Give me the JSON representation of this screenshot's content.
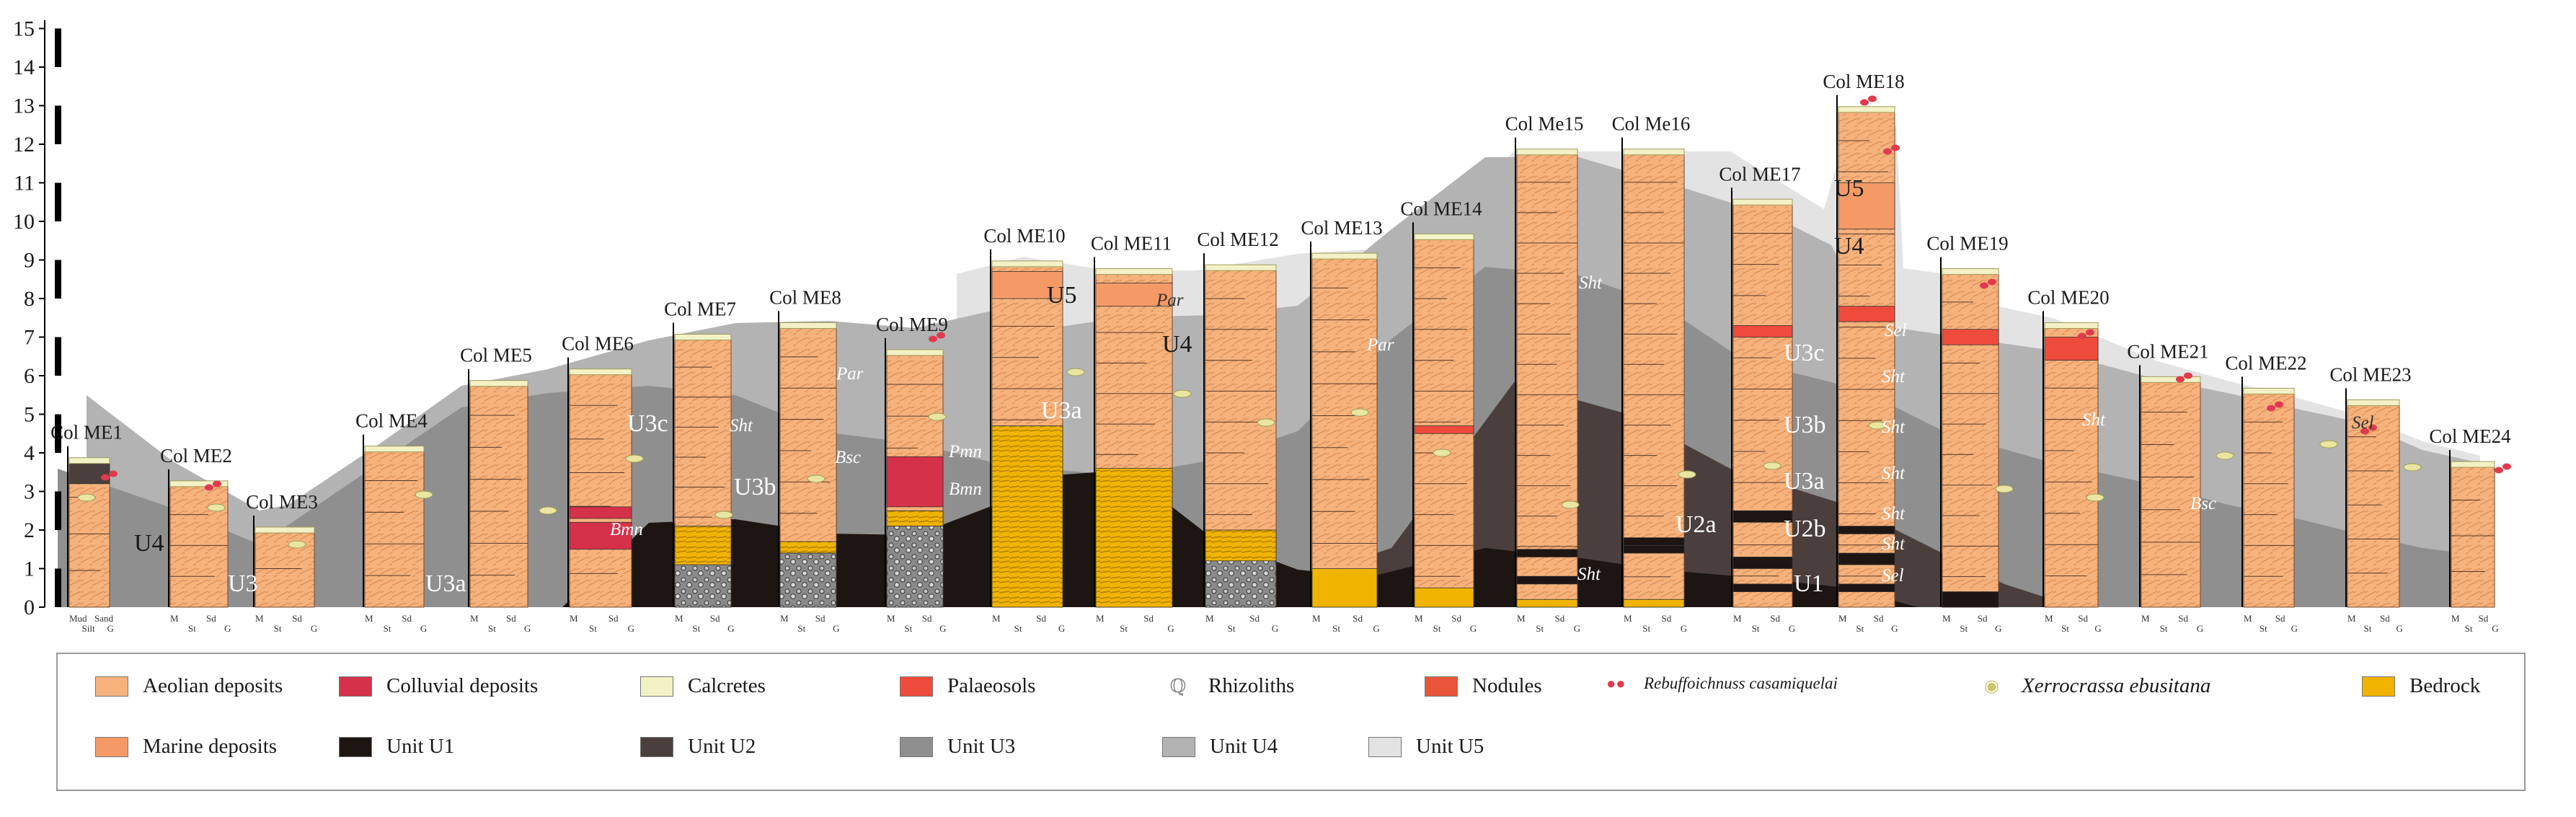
{
  "y_axis": {
    "ticks": [
      "0",
      "1",
      "2",
      "3",
      "4",
      "5",
      "6",
      "7",
      "8",
      "9",
      "10",
      "11",
      "12",
      "13",
      "14",
      "15"
    ]
  },
  "columns": [
    {
      "name": "Col ME1",
      "height": 3.8
    },
    {
      "name": "Col ME2",
      "height": 3.2
    },
    {
      "name": "Col ME3",
      "height": 2.0
    },
    {
      "name": "Col ME4",
      "height": 4.1
    },
    {
      "name": "Col ME5",
      "height": 5.8
    },
    {
      "name": "Col ME6",
      "height": 6.1
    },
    {
      "name": "Col ME7",
      "height": 7.0
    },
    {
      "name": "Col ME8",
      "height": 7.3
    },
    {
      "name": "Col ME9",
      "height": 6.6
    },
    {
      "name": "Col ME10",
      "height": 8.9
    },
    {
      "name": "Col ME11",
      "height": 8.7
    },
    {
      "name": "Col ME12",
      "height": 8.8
    },
    {
      "name": "Col ME13",
      "height": 9.1
    },
    {
      "name": "Col ME14",
      "height": 9.6
    },
    {
      "name": "Col Me15",
      "height": 11.8
    },
    {
      "name": "Col Me16",
      "height": 11.8
    },
    {
      "name": "Col ME17",
      "height": 10.5
    },
    {
      "name": "Col ME18",
      "height": 12.9
    },
    {
      "name": "Col ME19",
      "height": 8.7
    },
    {
      "name": "Col ME20",
      "height": 7.3
    },
    {
      "name": "Col ME21",
      "height": 5.9
    },
    {
      "name": "Col ME22",
      "height": 5.6
    },
    {
      "name": "Col ME23",
      "height": 5.3
    },
    {
      "name": "Col ME24",
      "height": 3.7
    }
  ],
  "grain_size_labels": {
    "me1": [
      "Mud",
      "Silt",
      "Sand",
      "G"
    ],
    "standard": [
      "M",
      "St",
      "Sd",
      "G"
    ]
  },
  "unit_labels": {
    "u4_me1": "U4",
    "u3_me2": "U3",
    "u3a_me4": "U3a",
    "u3c_me6": "U3c",
    "u3b_me7": "U3b",
    "u5_me10": "U5",
    "u3a_me10": "U3a",
    "u4_me11": "U4",
    "u2a": "U2a",
    "u3c_me18": "U3c",
    "u3b_me18": "U3b",
    "u3a_me18": "U3a",
    "u2b": "U2b",
    "u1": "U1",
    "u5_me18": "U5",
    "u4_me18": "U4"
  },
  "facies_labels": {
    "bmn_me6": "Bmn",
    "sht_me7": "Sht",
    "par_me8": "Par",
    "bsc_me8": "Bsc",
    "pmn_me9": "Pmn",
    "bmn_me9": "Bmn",
    "par_me11": "Par",
    "par_me13": "Par",
    "sht_me15": "Sht",
    "sht_me15b": "Sht",
    "sel_me18": "Sel",
    "sht_me18a": "Sht",
    "sht_me18b": "Sht",
    "sht_me18c": "Sht",
    "sht_me18d": "Sht",
    "sht_me18e": "Sht",
    "sel_me18b": "Sel",
    "sht_me20": "Sht",
    "bsc_me21": "Bsc",
    "sel_me23": "Sel"
  },
  "legend": {
    "row1": [
      {
        "label": "Aeolian deposits",
        "color": "#f6b27c"
      },
      {
        "label": "Colluvial deposits",
        "color": "#d6314a"
      },
      {
        "label": "Calcretes",
        "color": "#f3f2c6"
      },
      {
        "label": "Palaeosols",
        "color": "#ef4b3c"
      },
      {
        "label": "Rhizoliths",
        "color": "#ffffff"
      },
      {
        "label": "Nodules",
        "color": "#e9553a"
      },
      {
        "label": "Rebuffoichnuss casamiquelai",
        "color": "#e03a4e"
      },
      {
        "label": "Xerrocrassa ebusitana",
        "color": "#e8e6a0"
      },
      {
        "label": "Bedrock",
        "color": "#f0b400"
      }
    ],
    "row2": [
      {
        "label": "Marine deposits",
        "color": "#f59a66"
      },
      {
        "label": "Unit U1",
        "color": "#1c1512"
      },
      {
        "label": "Unit U2",
        "color": "#4a3f3c"
      },
      {
        "label": "Unit U3",
        "color": "#8f8f8f"
      },
      {
        "label": "Unit U4",
        "color": "#b3b3b3"
      },
      {
        "label": "Unit U5",
        "color": "#e3e3e3"
      }
    ]
  }
}
